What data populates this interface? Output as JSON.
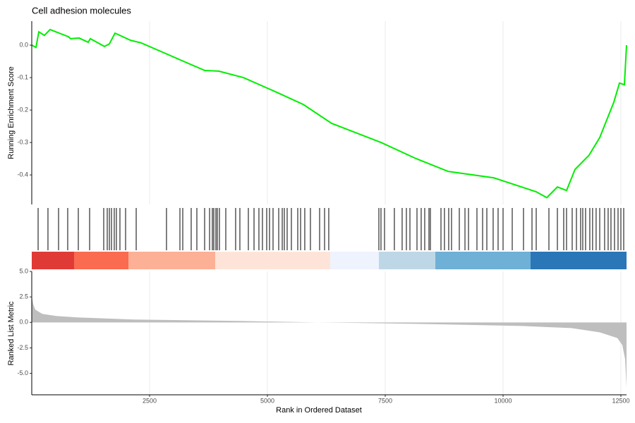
{
  "chart_data": {
    "type": "gsea",
    "title": "Cell adhesion molecules",
    "xlabel": "Rank in Ordered Dataset",
    "ylabel": "Running Enrichment Score",
    "y2label": "Ranked List Metric",
    "xlim": [
      0,
      12620
    ],
    "xticks": [
      2500,
      5000,
      7500,
      10000,
      12500
    ],
    "ylim": [
      -0.491,
      0.074
    ],
    "yticks": [
      {
        "value": 0,
        "label": "0.0"
      },
      {
        "value": -0.1,
        "label": "-0.1"
      },
      {
        "value": -0.2,
        "label": "-0.2"
      },
      {
        "value": -0.3,
        "label": "-0.3"
      },
      {
        "value": -0.4,
        "label": "-0.4"
      }
    ],
    "y2lim": [
      -7.1,
      5.0
    ],
    "y2ticks": [
      {
        "value": 5,
        "label": "5.0"
      },
      {
        "value": 2.5,
        "label": "2.5"
      },
      {
        "value": 0,
        "label": "0.0"
      },
      {
        "value": -2.5,
        "label": "-2.5"
      },
      {
        "value": -5,
        "label": "-5.0"
      }
    ],
    "grid": true,
    "es": {
      "color": "#00ee00",
      "x": [
        0,
        90,
        150,
        269,
        389,
        778,
        823,
        1003,
        1198,
        1243,
        1542,
        1647,
        1766,
        2096,
        2320,
        2844,
        3668,
        3967,
        4491,
        5240,
        5763,
        6362,
        7410,
        8159,
        8832,
        9805,
        10704,
        10928,
        11153,
        11347,
        11527,
        11826,
        12051,
        12350,
        12470,
        12575,
        12620
      ],
      "values": [
        0,
        -0.007,
        0.041,
        0.03,
        0.048,
        0.026,
        0.02,
        0.022,
        0.009,
        0.02,
        -0.004,
        0.004,
        0.037,
        0.015,
        0.007,
        -0.026,
        -0.078,
        -0.08,
        -0.1,
        -0.148,
        -0.183,
        -0.241,
        -0.3,
        -0.35,
        -0.389,
        -0.409,
        -0.452,
        -0.47,
        -0.437,
        -0.448,
        -0.383,
        -0.339,
        -0.285,
        -0.176,
        -0.117,
        -0.122,
        0
      ]
    },
    "hits": [
      135,
      344,
      569,
      763,
      988,
      1228,
      1527,
      1602,
      1647,
      1692,
      1751,
      1796,
      1871,
      1991,
      2216,
      2859,
      3144,
      3204,
      3383,
      3503,
      3668,
      3773,
      3832,
      3862,
      3907,
      3937,
      3982,
      4117,
      4326,
      4416,
      4596,
      4716,
      4820,
      4895,
      4985,
      5045,
      5120,
      5240,
      5315,
      5359,
      5419,
      5509,
      5644,
      5704,
      5793,
      5913,
      6108,
      6213,
      6302,
      7365,
      7410,
      7485,
      7694,
      7859,
      7949,
      8024,
      8174,
      8263,
      8338,
      8428,
      8458,
      8683,
      8757,
      8847,
      8907,
      9072,
      9192,
      9267,
      9446,
      9566,
      9656,
      9790,
      9895,
      10000,
      10195,
      10434,
      10614,
      10704,
      10973,
      11153,
      11287,
      11347,
      11467,
      11557,
      11646,
      11691,
      11751,
      11841,
      11900,
      11975,
      12051,
      12155,
      12230,
      12290,
      12365,
      12440,
      12500,
      12560
    ],
    "bands": [
      {
        "start": 0,
        "end": 898,
        "color": "#e03a36"
      },
      {
        "start": 898,
        "end": 2051,
        "color": "#fa6b4f"
      },
      {
        "start": 2051,
        "end": 3892,
        "color": "#fcb095"
      },
      {
        "start": 3892,
        "end": 6332,
        "color": "#fee4d8"
      },
      {
        "start": 6332,
        "end": 7365,
        "color": "#eef3fe"
      },
      {
        "start": 7365,
        "end": 8563,
        "color": "#bed7e6"
      },
      {
        "start": 8563,
        "end": 10584,
        "color": "#6fb0d7"
      },
      {
        "start": 10584,
        "end": 12620,
        "color": "#2b76b7"
      }
    ],
    "metric": {
      "color": "#bebebe",
      "x": [
        0,
        30,
        75,
        225,
        524,
        973,
        2171,
        4416,
        6063,
        8159,
        10404,
        11452,
        12051,
        12425,
        12530,
        12590,
        12620
      ],
      "values": [
        2.64,
        1.8,
        1.25,
        0.83,
        0.63,
        0.49,
        0.28,
        0.14,
        0,
        -0.14,
        -0.35,
        -0.56,
        -0.97,
        -1.53,
        -2.22,
        -3.6,
        -6.39
      ]
    }
  }
}
